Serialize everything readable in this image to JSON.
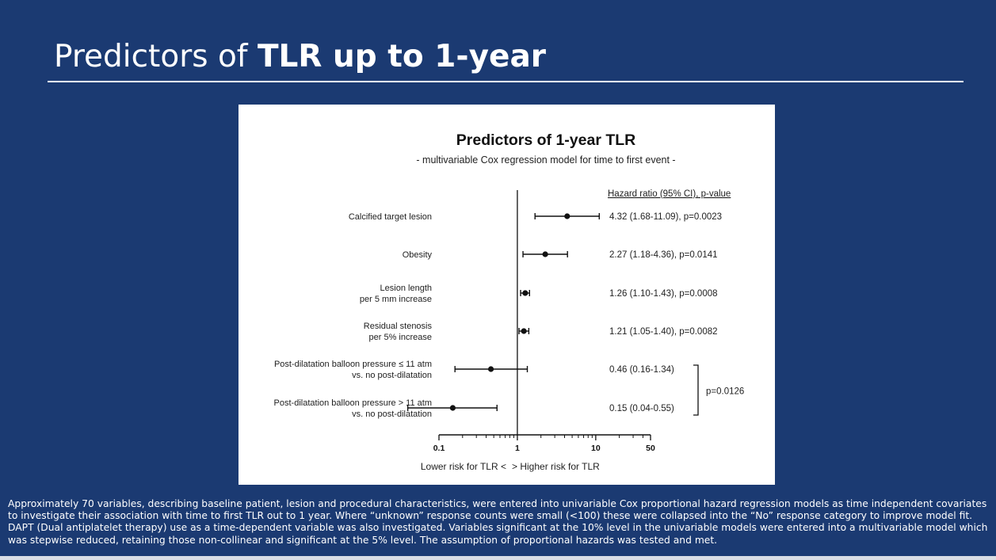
{
  "slide": {
    "title_prefix": "Predictors of ",
    "title_bold": "TLR up to 1-year",
    "footnote": "Approximately 70 variables, describing baseline patient, lesion and procedural characteristics, were entered into univariable Cox proportional hazard regression models as time independent covariates to investigate their association with time to first  TLR out to 1 year.  Where “unknown” response counts were small (<100) these were collapsed into the “No” response category to improve model fit. DAPT (Dual antiplatelet therapy) use as a time-dependent variable was also investigated. Variables significant at the 10% level in the univariable models were entered into a multivariable model which was stepwise reduced, retaining those non-collinear and significant at the 5% level. The assumption of proportional hazards was tested and met.",
    "colors": {
      "background": "#1b3a72",
      "text": "#ffffff",
      "panel": "#ffffff"
    }
  },
  "chart_data": {
    "type": "forest",
    "title": "Predictors of 1-year TLR",
    "subtitle": "- multivariable Cox regression model for time to first event -",
    "column_header": "Hazard ratio (95% CI), p-value",
    "x_scale": "log",
    "xlim": [
      0.1,
      50
    ],
    "x_ticks": [
      0.1,
      1,
      10,
      50
    ],
    "x_tick_labels": [
      "0.1",
      "1",
      "10",
      "50"
    ],
    "reference_line": 1,
    "xlabel_left": "Lower risk for TLR <",
    "xlabel_right": "> Higher risk for TLR",
    "rows": [
      {
        "label": [
          "Calcified target lesion"
        ],
        "hr": 4.32,
        "lo": 1.68,
        "hi": 11.09,
        "text": "4.32 (1.68-11.09), p=0.0023"
      },
      {
        "label": [
          "Obesity"
        ],
        "hr": 2.27,
        "lo": 1.18,
        "hi": 4.36,
        "text": "2.27 (1.18-4.36), p=0.0141"
      },
      {
        "label": [
          "Lesion length",
          "per 5 mm increase"
        ],
        "hr": 1.26,
        "lo": 1.1,
        "hi": 1.43,
        "text": "1.26 (1.10-1.43), p=0.0008"
      },
      {
        "label": [
          "Residual stenosis",
          "per 5% increase"
        ],
        "hr": 1.21,
        "lo": 1.05,
        "hi": 1.4,
        "text": "1.21 (1.05-1.40), p=0.0082"
      },
      {
        "label": [
          "Post-dilatation balloon pressure ≤ 11 atm",
          "vs. no post-dilatation"
        ],
        "hr": 0.46,
        "lo": 0.16,
        "hi": 1.34,
        "text": "0.46 (0.16-1.34)"
      },
      {
        "label": [
          "Post-dilatation balloon pressure > 11 atm",
          "vs. no post-dilatation"
        ],
        "hr": 0.15,
        "lo": 0.04,
        "hi": 0.55,
        "text": "0.15 (0.04-0.55)"
      }
    ],
    "group_bracket": {
      "rows": [
        4,
        5
      ],
      "text": "p=0.0126"
    }
  }
}
